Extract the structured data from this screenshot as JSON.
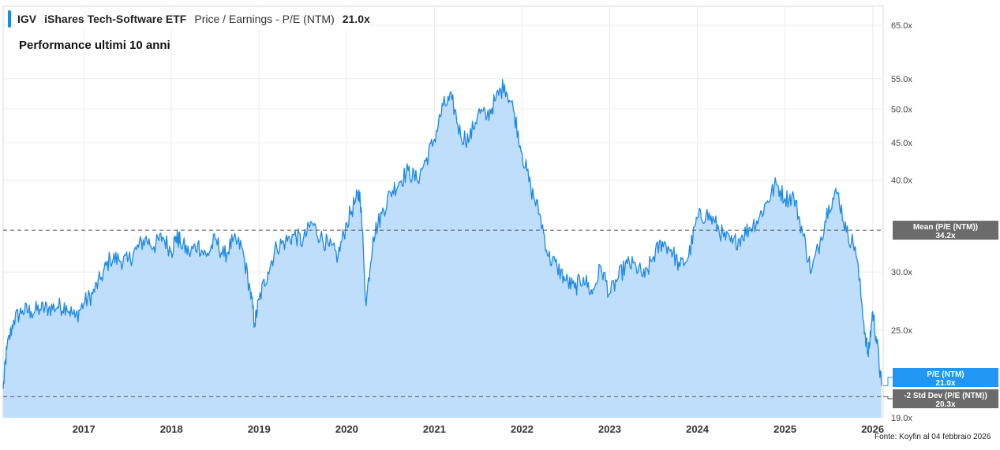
{
  "legend": {
    "ticker": "IGV",
    "name": "iShares Tech-Software ETF",
    "metric": "Price / Earnings - P/E (NTM)",
    "value": "21.0x"
  },
  "subtitle": "Performance ultimi 10 anni",
  "source": "Fonte:  Koyfin al 04 febbraio 2026",
  "colors": {
    "line": "#1e88e5",
    "area": "#bfdefc",
    "mean_box": "#6b6b6b",
    "current_box": "#2196f3",
    "std_box": "#6b6b6b"
  },
  "chart_data": {
    "type": "area",
    "scale": "log",
    "ylim": [
      19.0,
      69.0
    ],
    "xlim": [
      2016.08,
      2026.12
    ],
    "x_ticks": [
      2017,
      2018,
      2019,
      2020,
      2021,
      2022,
      2023,
      2024,
      2025,
      2026
    ],
    "x_tick_labels": [
      "2017",
      "2018",
      "2019",
      "2020",
      "2021",
      "2022",
      "2023",
      "2024",
      "2025",
      "2026"
    ],
    "y_ticks": [
      19,
      25,
      30,
      40,
      45,
      50,
      55,
      65
    ],
    "y_tick_labels": [
      "19.0x",
      "25.0x",
      "30.0x",
      "40.0x",
      "45.0x",
      "50.0x",
      "55.0x",
      "65.0x"
    ],
    "grid": true,
    "series": [
      {
        "name": "P/E (NTM)",
        "x": [
          2016.08,
          2016.12,
          2016.2,
          2016.3,
          2016.4,
          2016.5,
          2016.6,
          2016.7,
          2016.8,
          2016.9,
          2017.0,
          2017.1,
          2017.2,
          2017.3,
          2017.4,
          2017.5,
          2017.6,
          2017.7,
          2017.8,
          2017.9,
          2018.0,
          2018.05,
          2018.1,
          2018.2,
          2018.3,
          2018.4,
          2018.5,
          2018.6,
          2018.7,
          2018.8,
          2018.9,
          2018.95,
          2019.0,
          2019.1,
          2019.2,
          2019.3,
          2019.4,
          2019.5,
          2019.6,
          2019.7,
          2019.8,
          2019.9,
          2020.0,
          2020.1,
          2020.15,
          2020.22,
          2020.3,
          2020.4,
          2020.5,
          2020.6,
          2020.7,
          2020.8,
          2020.9,
          2021.0,
          2021.1,
          2021.2,
          2021.3,
          2021.4,
          2021.5,
          2021.6,
          2021.7,
          2021.8,
          2021.9,
          2022.0,
          2022.1,
          2022.2,
          2022.3,
          2022.4,
          2022.5,
          2022.6,
          2022.7,
          2022.8,
          2022.9,
          2023.0,
          2023.1,
          2023.2,
          2023.3,
          2023.4,
          2023.5,
          2023.6,
          2023.7,
          2023.8,
          2023.9,
          2024.0,
          2024.1,
          2024.2,
          2024.3,
          2024.4,
          2024.5,
          2024.6,
          2024.7,
          2024.8,
          2024.9,
          2025.0,
          2025.1,
          2025.2,
          2025.3,
          2025.4,
          2025.5,
          2025.6,
          2025.7,
          2025.8,
          2025.9,
          2025.95,
          2026.0,
          2026.05,
          2026.1
        ],
        "y": [
          20.8,
          23.5,
          25.8,
          26.6,
          26.5,
          26.7,
          26.8,
          26.9,
          27.0,
          26.0,
          27.2,
          28.0,
          29.5,
          31.3,
          31.2,
          31.0,
          32.2,
          33.3,
          32.5,
          33.5,
          32.0,
          33.5,
          33.0,
          31.8,
          32.7,
          31.5,
          33.2,
          31.5,
          33.0,
          32.5,
          28.2,
          25.5,
          27.5,
          30.0,
          32.5,
          33.0,
          33.7,
          33.0,
          35.0,
          33.5,
          32.5,
          31.5,
          35.0,
          37.5,
          38.5,
          27.0,
          33.5,
          36.0,
          38.5,
          39.8,
          41.2,
          40.0,
          42.5,
          45.5,
          50.5,
          51.5,
          46.0,
          45.5,
          49.5,
          48.8,
          51.5,
          54.0,
          50.0,
          43.5,
          39.0,
          36.0,
          31.5,
          30.5,
          29.2,
          28.5,
          29.5,
          28.0,
          30.5,
          28.0,
          29.5,
          30.8,
          30.5,
          29.5,
          31.5,
          33.0,
          32.2,
          30.5,
          31.5,
          35.5,
          36.0,
          35.0,
          33.5,
          32.8,
          33.5,
          34.5,
          35.5,
          37.5,
          39.5,
          37.8,
          38.0,
          34.0,
          30.0,
          33.0,
          37.0,
          38.5,
          34.0,
          32.5,
          25.5,
          23.0,
          26.5,
          24.0,
          21.0
        ]
      }
    ],
    "reference_lines": [
      {
        "label": "Mean (P/E (NTM))",
        "value": 34.2,
        "value_label": "34.2x"
      },
      {
        "label": "-2 Std Dev (P/E (NTM))",
        "value": 20.3,
        "value_label": "20.3x"
      }
    ],
    "current": {
      "label": "P/E (NTM)",
      "value": 21.0,
      "value_label": "21.0x"
    }
  }
}
